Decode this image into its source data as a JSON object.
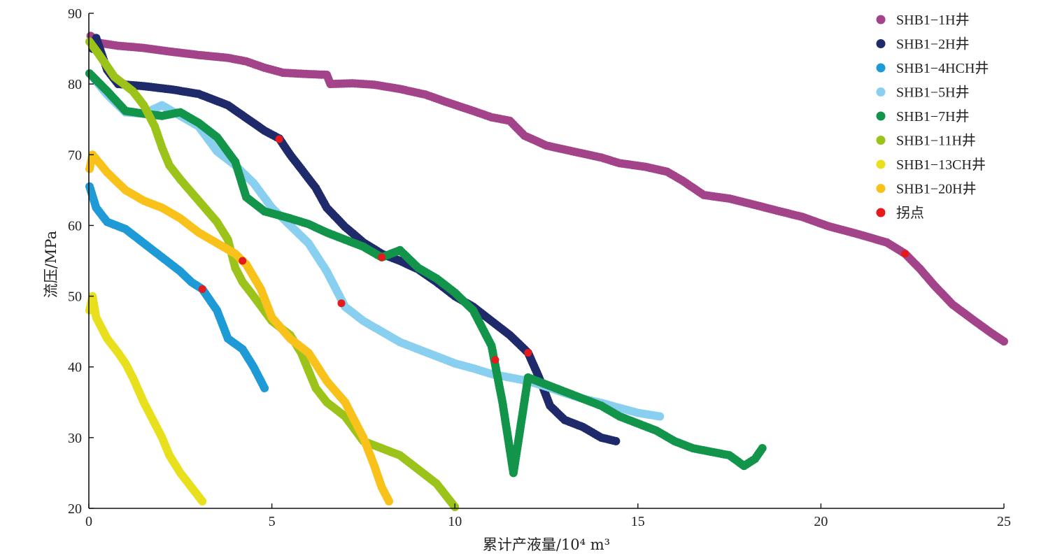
{
  "chart_data": {
    "type": "scatter",
    "xlabel": "累计产液量/10⁴ m³",
    "ylabel": "流压/MPa",
    "xlim": [
      0,
      25
    ],
    "ylim": [
      20,
      90
    ],
    "x_ticks": [
      "0",
      "5",
      "10",
      "15",
      "20",
      "25"
    ],
    "y_ticks": [
      "20",
      "30",
      "40",
      "50",
      "60",
      "70",
      "80",
      "90"
    ],
    "grid": false,
    "legend_position": "top-right",
    "series": [
      {
        "name": "SHB1−1H井",
        "color": "#a3448a",
        "points": [
          [
            0.05,
            86.8
          ],
          [
            0.3,
            85.8
          ],
          [
            0.8,
            85.4
          ],
          [
            1.5,
            85.1
          ],
          [
            2.2,
            84.6
          ],
          [
            3.0,
            84.1
          ],
          [
            3.8,
            83.7
          ],
          [
            4.3,
            83.2
          ],
          [
            4.8,
            82.3
          ],
          [
            5.3,
            81.6
          ],
          [
            6.0,
            81.4
          ],
          [
            6.5,
            81.3
          ],
          [
            6.6,
            80.0
          ],
          [
            7.2,
            80.1
          ],
          [
            7.8,
            79.9
          ],
          [
            8.5,
            79.3
          ],
          [
            9.2,
            78.5
          ],
          [
            9.8,
            77.4
          ],
          [
            10.5,
            76.2
          ],
          [
            11.0,
            75.3
          ],
          [
            11.5,
            74.8
          ],
          [
            11.9,
            72.7
          ],
          [
            12.5,
            71.3
          ],
          [
            13.2,
            70.5
          ],
          [
            14.0,
            69.6
          ],
          [
            14.5,
            68.8
          ],
          [
            15.2,
            68.3
          ],
          [
            15.8,
            67.6
          ],
          [
            16.2,
            66.4
          ],
          [
            16.8,
            64.3
          ],
          [
            17.5,
            63.8
          ],
          [
            18.2,
            62.9
          ],
          [
            18.8,
            62.1
          ],
          [
            19.5,
            61.2
          ],
          [
            20.2,
            59.9
          ],
          [
            21.0,
            58.8
          ],
          [
            21.8,
            57.6
          ],
          [
            22.3,
            56.0
          ],
          [
            22.7,
            53.9
          ],
          [
            23.1,
            51.5
          ],
          [
            23.6,
            48.8
          ],
          [
            24.2,
            46.5
          ],
          [
            24.6,
            45.0
          ],
          [
            25.0,
            43.6
          ]
        ]
      },
      {
        "name": "SHB1−2H井",
        "color": "#1f2a6b",
        "points": [
          [
            0.1,
            85.0
          ],
          [
            0.2,
            86.5
          ],
          [
            0.5,
            82.0
          ],
          [
            0.8,
            80.0
          ],
          [
            1.5,
            79.7
          ],
          [
            2.3,
            79.2
          ],
          [
            3.0,
            78.6
          ],
          [
            3.8,
            77.0
          ],
          [
            4.3,
            75.2
          ],
          [
            4.8,
            73.4
          ],
          [
            5.2,
            72.3
          ],
          [
            5.5,
            70.0
          ],
          [
            5.8,
            68.0
          ],
          [
            6.2,
            65.3
          ],
          [
            6.5,
            62.5
          ],
          [
            7.0,
            59.8
          ],
          [
            7.5,
            57.6
          ],
          [
            8.0,
            56.0
          ],
          [
            8.5,
            55.0
          ],
          [
            9.0,
            53.8
          ],
          [
            9.5,
            52.0
          ],
          [
            10.0,
            50.0
          ],
          [
            10.5,
            48.5
          ],
          [
            11.0,
            46.5
          ],
          [
            11.5,
            44.5
          ],
          [
            12.0,
            42.0
          ],
          [
            12.3,
            38.5
          ],
          [
            12.6,
            34.5
          ],
          [
            13.0,
            32.5
          ],
          [
            13.5,
            31.5
          ],
          [
            14.0,
            30.0
          ],
          [
            14.4,
            29.5
          ]
        ]
      },
      {
        "name": "SHB1−4HCH井",
        "color": "#1e9ad6",
        "points": [
          [
            0.02,
            65.5
          ],
          [
            0.2,
            62.5
          ],
          [
            0.5,
            60.5
          ],
          [
            1.0,
            59.5
          ],
          [
            1.5,
            57.5
          ],
          [
            2.0,
            55.5
          ],
          [
            2.5,
            53.5
          ],
          [
            2.8,
            52.0
          ],
          [
            3.1,
            51.0
          ],
          [
            3.5,
            48.0
          ],
          [
            3.8,
            44.0
          ],
          [
            4.2,
            42.5
          ],
          [
            4.5,
            40.0
          ],
          [
            4.8,
            37.0
          ]
        ]
      },
      {
        "name": "SHB1−5H井",
        "color": "#89cff0",
        "points": [
          [
            0.1,
            81.0
          ],
          [
            0.5,
            78.5
          ],
          [
            1.0,
            76.0
          ],
          [
            1.5,
            75.8
          ],
          [
            2.0,
            77.0
          ],
          [
            2.5,
            75.5
          ],
          [
            3.0,
            74.0
          ],
          [
            3.5,
            70.5
          ],
          [
            4.0,
            68.5
          ],
          [
            4.5,
            66.0
          ],
          [
            5.0,
            62.5
          ],
          [
            5.5,
            60.0
          ],
          [
            6.0,
            57.5
          ],
          [
            6.5,
            53.5
          ],
          [
            7.0,
            48.5
          ],
          [
            7.5,
            46.5
          ],
          [
            8.0,
            45.0
          ],
          [
            8.5,
            43.5
          ],
          [
            9.0,
            42.5
          ],
          [
            9.5,
            41.5
          ],
          [
            10.0,
            40.5
          ],
          [
            10.5,
            39.8
          ],
          [
            11.0,
            39.0
          ],
          [
            11.5,
            38.5
          ],
          [
            12.0,
            38.0
          ],
          [
            12.5,
            37.2
          ],
          [
            13.0,
            36.3
          ],
          [
            13.5,
            35.5
          ],
          [
            14.0,
            34.9
          ],
          [
            14.5,
            34.2
          ],
          [
            15.0,
            33.5
          ],
          [
            15.6,
            33.0
          ]
        ]
      },
      {
        "name": "SHB1−7H井",
        "color": "#12944a",
        "points": [
          [
            0.02,
            81.5
          ],
          [
            0.5,
            79.0
          ],
          [
            1.0,
            76.2
          ],
          [
            1.5,
            75.8
          ],
          [
            2.0,
            75.5
          ],
          [
            2.5,
            76.0
          ],
          [
            3.0,
            74.5
          ],
          [
            3.5,
            72.5
          ],
          [
            4.0,
            69.0
          ],
          [
            4.3,
            64.0
          ],
          [
            4.8,
            62.0
          ],
          [
            5.5,
            61.0
          ],
          [
            6.0,
            60.2
          ],
          [
            6.5,
            59.0
          ],
          [
            7.0,
            58.0
          ],
          [
            7.5,
            57.0
          ],
          [
            8.0,
            55.5
          ],
          [
            8.5,
            56.5
          ],
          [
            9.0,
            54.0
          ],
          [
            9.5,
            52.5
          ],
          [
            10.0,
            50.5
          ],
          [
            10.5,
            48.0
          ],
          [
            11.0,
            43.0
          ],
          [
            11.3,
            35.0
          ],
          [
            11.6,
            25.0
          ],
          [
            12.0,
            38.5
          ],
          [
            12.5,
            37.5
          ],
          [
            13.0,
            36.5
          ],
          [
            13.5,
            35.5
          ],
          [
            14.0,
            34.5
          ],
          [
            14.5,
            33.0
          ],
          [
            15.0,
            32.0
          ],
          [
            15.5,
            31.0
          ],
          [
            16.0,
            29.5
          ],
          [
            16.5,
            28.5
          ],
          [
            17.0,
            28.0
          ],
          [
            17.5,
            27.5
          ],
          [
            17.9,
            26.0
          ],
          [
            18.2,
            27.0
          ],
          [
            18.4,
            28.5
          ]
        ]
      },
      {
        "name": "SHB1−11H井",
        "color": "#9cc31a",
        "points": [
          [
            0.02,
            86.0
          ],
          [
            0.3,
            84.0
          ],
          [
            0.7,
            81.0
          ],
          [
            1.2,
            79.0
          ],
          [
            1.5,
            77.0
          ],
          [
            1.8,
            74.0
          ],
          [
            2.0,
            71.0
          ],
          [
            2.2,
            68.5
          ],
          [
            2.5,
            66.5
          ],
          [
            3.0,
            63.5
          ],
          [
            3.5,
            60.5
          ],
          [
            3.8,
            58.0
          ],
          [
            4.0,
            54.0
          ],
          [
            4.2,
            52.0
          ],
          [
            4.5,
            50.0
          ],
          [
            5.0,
            46.5
          ],
          [
            5.5,
            44.5
          ],
          [
            5.8,
            42.0
          ],
          [
            6.2,
            37.0
          ],
          [
            6.5,
            35.0
          ],
          [
            7.0,
            33.0
          ],
          [
            7.5,
            29.5
          ],
          [
            8.0,
            28.5
          ],
          [
            8.5,
            27.5
          ],
          [
            9.0,
            25.5
          ],
          [
            9.5,
            23.5
          ],
          [
            10.0,
            20.2
          ]
        ]
      },
      {
        "name": "SHB1−13CH井",
        "color": "#e8e01c",
        "points": [
          [
            0.02,
            48.0
          ],
          [
            0.1,
            50.0
          ],
          [
            0.2,
            47.0
          ],
          [
            0.5,
            44.0
          ],
          [
            0.8,
            42.0
          ],
          [
            1.0,
            40.5
          ],
          [
            1.2,
            38.5
          ],
          [
            1.5,
            35.0
          ],
          [
            1.8,
            32.0
          ],
          [
            2.0,
            30.0
          ],
          [
            2.2,
            27.5
          ],
          [
            2.5,
            25.0
          ],
          [
            2.8,
            23.0
          ],
          [
            3.1,
            21.0
          ]
        ]
      },
      {
        "name": "SHB1−20H井",
        "color": "#f8c21b",
        "points": [
          [
            0.02,
            68.0
          ],
          [
            0.1,
            70.0
          ],
          [
            0.5,
            67.5
          ],
          [
            1.0,
            65.0
          ],
          [
            1.5,
            63.5
          ],
          [
            2.0,
            62.5
          ],
          [
            2.5,
            61.0
          ],
          [
            3.0,
            59.0
          ],
          [
            3.5,
            57.5
          ],
          [
            4.0,
            56.0
          ],
          [
            4.3,
            54.5
          ],
          [
            4.7,
            51.0
          ],
          [
            5.0,
            47.0
          ],
          [
            5.5,
            44.0
          ],
          [
            6.0,
            42.0
          ],
          [
            6.5,
            38.0
          ],
          [
            7.0,
            35.0
          ],
          [
            7.5,
            30.0
          ],
          [
            7.8,
            26.0
          ],
          [
            8.0,
            23.0
          ],
          [
            8.2,
            21.0
          ]
        ]
      },
      {
        "name": "拐点",
        "color": "#e41a1c",
        "points": [
          [
            3.1,
            51.0
          ],
          [
            4.2,
            55.0
          ],
          [
            5.2,
            72.2
          ],
          [
            6.9,
            49.0
          ],
          [
            8.0,
            55.5
          ],
          [
            11.1,
            41.0
          ],
          [
            12.0,
            42.0
          ],
          [
            22.3,
            56.0
          ]
        ]
      }
    ]
  }
}
